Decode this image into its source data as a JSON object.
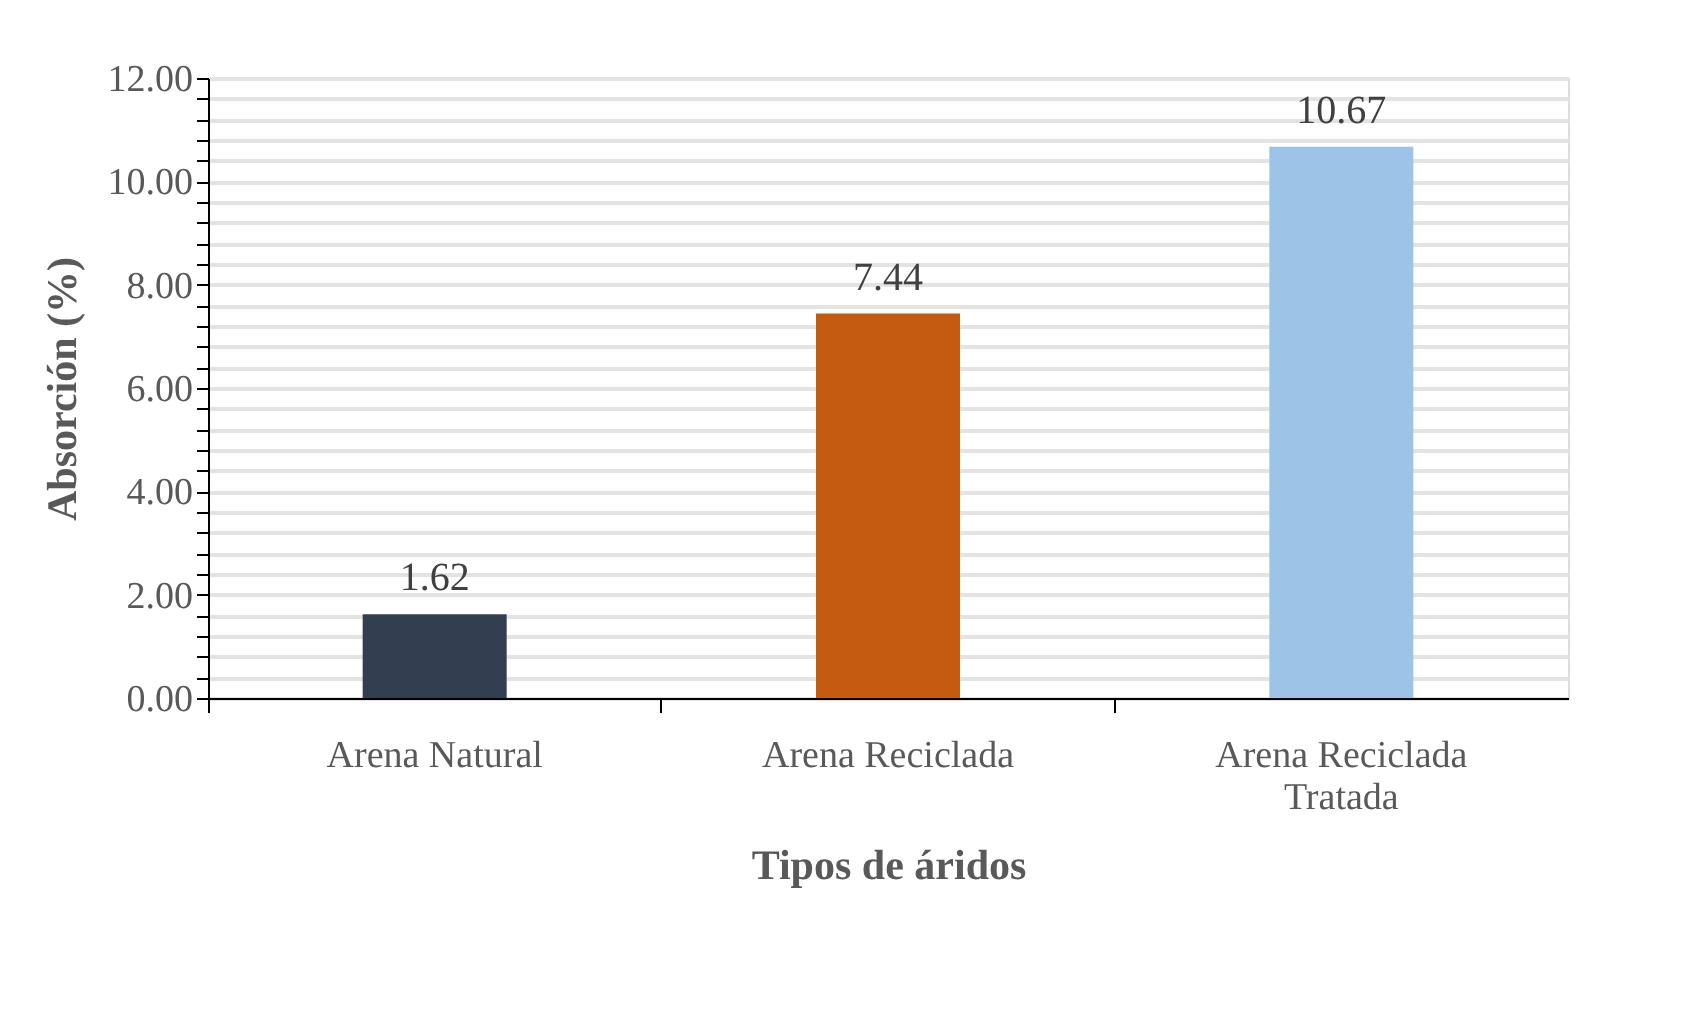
{
  "chart_data": {
    "type": "bar",
    "xlabel": "Tipos de áridos",
    "ylabel": "Absorción (%)",
    "categories": [
      "Arena Natural",
      "Arena Reciclada",
      "Arena Reciclada Tratada"
    ],
    "values": [
      1.62,
      7.44,
      10.67
    ],
    "colors": [
      "#333f50",
      "#c55a11",
      "#9dc3e6"
    ],
    "ylim": [
      0,
      12
    ],
    "yticks": [
      {
        "value": 0,
        "label": "0.00"
      },
      {
        "value": 0.4,
        "label": null
      },
      {
        "value": 0.8,
        "label": null
      },
      {
        "value": 1.2,
        "label": null
      },
      {
        "value": 1.6,
        "label": null
      },
      {
        "value": 2,
        "label": "2.00"
      },
      {
        "value": 2.4,
        "label": null
      },
      {
        "value": 2.8,
        "label": null
      },
      {
        "value": 3.2,
        "label": null
      },
      {
        "value": 3.6,
        "label": null
      },
      {
        "value": 4,
        "label": "4.00"
      },
      {
        "value": 4.4,
        "label": null
      },
      {
        "value": 4.8,
        "label": null
      },
      {
        "value": 5.2,
        "label": null
      },
      {
        "value": 5.6,
        "label": null
      },
      {
        "value": 6,
        "label": "6.00"
      },
      {
        "value": 6.4,
        "label": null
      },
      {
        "value": 6.8,
        "label": null
      },
      {
        "value": 7.2,
        "label": null
      },
      {
        "value": 7.6,
        "label": null
      },
      {
        "value": 8,
        "label": "8.00"
      },
      {
        "value": 8.4,
        "label": null
      },
      {
        "value": 8.8,
        "label": null
      },
      {
        "value": 9.2,
        "label": null
      },
      {
        "value": 9.6,
        "label": null
      },
      {
        "value": 10,
        "label": "10.00"
      },
      {
        "value": 10.4,
        "label": null
      },
      {
        "value": 10.8,
        "label": null
      },
      {
        "value": 11.2,
        "label": null
      },
      {
        "value": 11.6,
        "label": null
      },
      {
        "value": 12,
        "label": "12.00"
      }
    ],
    "grid": "y",
    "data_labels": true
  }
}
